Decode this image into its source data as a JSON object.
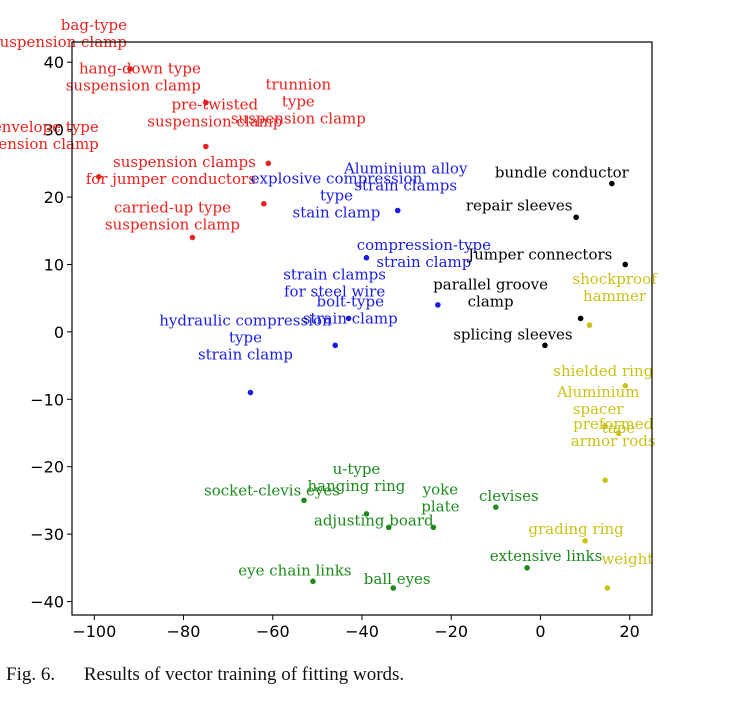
{
  "caption": {
    "number": "Fig. 6.",
    "text": "Results of vector training of fitting words."
  },
  "chart_data": {
    "type": "scatter",
    "title": "",
    "xlabel": "",
    "ylabel": "",
    "xlim": [
      -105,
      25
    ],
    "ylim": [
      -42,
      43
    ],
    "x_ticks": [
      -100,
      -80,
      -60,
      -40,
      -20,
      0,
      20
    ],
    "y_ticks": [
      -40,
      -30,
      -20,
      -10,
      0,
      10,
      20,
      30,
      40
    ],
    "x_tick_labels": [
      "−100",
      "−80",
      "−60",
      "−40",
      "−20",
      "0",
      "20"
    ],
    "y_tick_labels": [
      "−40",
      "−30",
      "−20",
      "−10",
      "0",
      "10",
      "20",
      "30",
      "40"
    ],
    "grid": false,
    "colors": {
      "red": "#e8231f",
      "blue": "#1a1ee0",
      "black": "#000000",
      "yellow": "#c9c21a",
      "green": "#1e8a1e"
    },
    "series": [
      {
        "color": "red",
        "points": [
          {
            "x": -92,
            "y": 39,
            "lines": [
              "bag-type",
              "suspension clamp"
            ]
          },
          {
            "x": -75,
            "y": 34,
            "lines": [
              "hang-down type",
              "suspension clamp"
            ]
          },
          {
            "x": -61,
            "y": 25,
            "lines": [
              "trunnion",
              "type",
              "suspension clamp"
            ]
          },
          {
            "x": -75,
            "y": 27.5,
            "lines": [
              "pre-twisted",
              "suspension clamp"
            ]
          },
          {
            "x": -99,
            "y": 23,
            "lines": [
              "envelope type",
              "suspension clamp"
            ]
          },
          {
            "x": -62,
            "y": 19,
            "lines": [
              "suspension clamps",
              "for jumper conductors"
            ]
          },
          {
            "x": -78,
            "y": 14,
            "lines": [
              "carried-up type",
              "suspension clamp"
            ]
          }
        ]
      },
      {
        "color": "blue",
        "points": [
          {
            "x": -32,
            "y": 18,
            "lines": [
              "Aluminium alloy",
              "strain clamps"
            ]
          },
          {
            "x": -39,
            "y": 11,
            "lines": [
              "explosive compression",
              "type",
              "stain clamp"
            ]
          },
          {
            "x": -23,
            "y": 4,
            "lines": [
              "compression-type",
              "strain clamp"
            ]
          },
          {
            "x": -43,
            "y": 2,
            "lines": [
              "strain clamps",
              "for steel wire"
            ]
          },
          {
            "x": -46,
            "y": -2,
            "lines": [
              "bolt-type",
              "strain clamp"
            ]
          },
          {
            "x": -65,
            "y": -9,
            "lines": [
              "hydraulic compression",
              "type",
              "strain clamp"
            ]
          }
        ]
      },
      {
        "color": "black",
        "points": [
          {
            "x": 16,
            "y": 22,
            "lines": [
              "bundle conductor"
            ]
          },
          {
            "x": 8,
            "y": 17,
            "lines": [
              "repair sleeves"
            ]
          },
          {
            "x": 19,
            "y": 10,
            "lines": [
              "Jumper connectors"
            ]
          },
          {
            "x": 9,
            "y": 2,
            "lines": [
              "parallel groove",
              "clamp"
            ]
          },
          {
            "x": 1,
            "y": -2,
            "lines": [
              "splicing sleeves"
            ]
          }
        ]
      },
      {
        "color": "yellow",
        "points": [
          {
            "x": 11,
            "y": 1,
            "lines": [
              "shockproof",
              "hammer"
            ]
          },
          {
            "x": 19,
            "y": -8,
            "lines": [
              "shielded ring"
            ]
          },
          {
            "x": 14.5,
            "y": -14,
            "lines": [
              "Aluminium",
              "spacer"
            ]
          },
          {
            "x": 17.5,
            "y": -15,
            "lines": [
              "tape"
            ]
          },
          {
            "x": 14.5,
            "y": -22,
            "lines": [
              "preformed",
              "armor rods"
            ]
          },
          {
            "x": 10,
            "y": -31,
            "lines": [
              "grading ring"
            ]
          },
          {
            "x": 15,
            "y": -38,
            "lines": [
              "weight"
            ]
          }
        ]
      },
      {
        "color": "green",
        "points": [
          {
            "x": -53,
            "y": -25,
            "lines": [
              "socket-clevis eyes"
            ]
          },
          {
            "x": -39,
            "y": -27,
            "lines": [
              "u-type",
              "hanging ring"
            ]
          },
          {
            "x": -34,
            "y": -29,
            "lines": [
              "adjusting board"
            ]
          },
          {
            "x": -24,
            "y": -29,
            "lines": [
              "yoke",
              "plate"
            ]
          },
          {
            "x": -10,
            "y": -26,
            "lines": [
              "clevises"
            ]
          },
          {
            "x": -3,
            "y": -35,
            "lines": [
              "extensive links"
            ]
          },
          {
            "x": -51,
            "y": -37,
            "lines": [
              "eye chain links"
            ]
          },
          {
            "x": -33,
            "y": -38,
            "lines": [
              "ball eyes"
            ]
          }
        ]
      }
    ]
  }
}
